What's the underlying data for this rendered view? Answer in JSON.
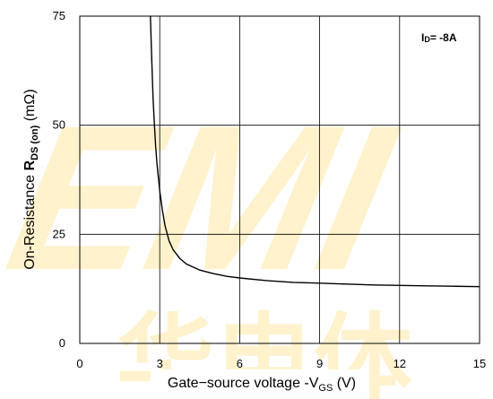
{
  "chart_data": {
    "type": "line",
    "xlabel": {
      "prefix": "Gate−source voltage -V",
      "sub": "GS",
      "suffix": " (V)"
    },
    "ylabel": {
      "prefix": "On-Resistance ",
      "bold": "R",
      "sub": "DS (on)",
      "suffix": " (mΩ)"
    },
    "xlim": [
      0,
      15
    ],
    "ylim": [
      0,
      75
    ],
    "xticks": [
      0,
      3,
      6,
      9,
      12,
      15
    ],
    "yticks": [
      0,
      25,
      50,
      75
    ],
    "grid": true,
    "legend": "none",
    "annotation": {
      "main": "I",
      "sub": "D",
      "rest": "= -8A"
    },
    "series": [
      {
        "x": [
          2.65,
          2.7,
          2.75,
          2.8,
          2.85,
          2.9,
          3.0,
          3.1,
          3.2,
          3.35,
          3.5,
          3.75,
          4.0,
          4.5,
          5.0,
          5.5,
          6.0,
          7.0,
          8.0,
          9.0,
          10.0,
          11.0,
          12.0,
          13.0,
          14.0,
          15.0
        ],
        "y": [
          75,
          65,
          56,
          50,
          45,
          41,
          35,
          30.5,
          27,
          23.5,
          21.5,
          19.5,
          18.2,
          16.8,
          16.0,
          15.4,
          15.0,
          14.4,
          14.0,
          13.8,
          13.6,
          13.4,
          13.3,
          13.2,
          13.1,
          13.0
        ]
      }
    ],
    "colors": {
      "line": "#000000",
      "grid": "#000000",
      "watermark": "#ffd24a"
    }
  },
  "watermark": {
    "letters": "EMI",
    "cjk": "华电体"
  }
}
